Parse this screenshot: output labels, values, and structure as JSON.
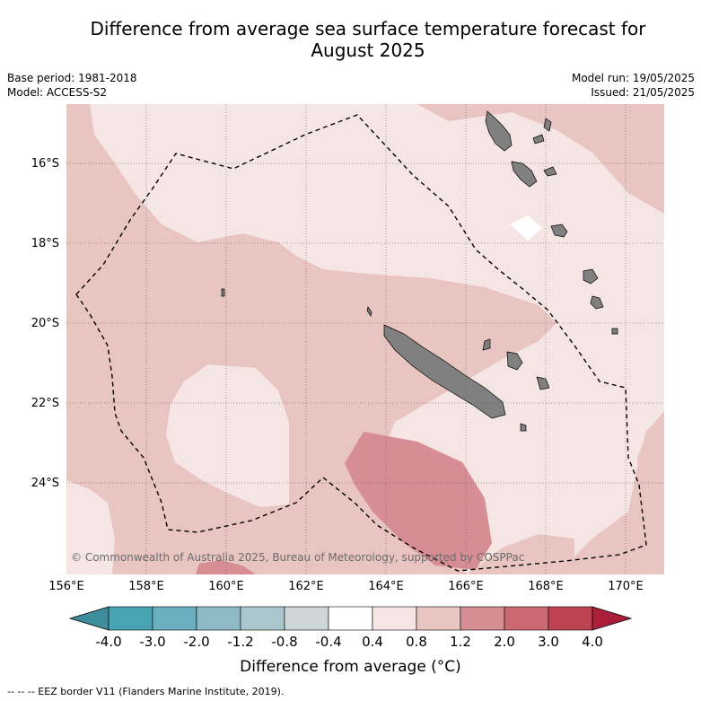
{
  "header": {
    "title_line1": "Difference from average sea surface temperature forecast for",
    "title_line2": "August 2025",
    "base_period": "Base period: 1981-2018",
    "model": "Model: ACCESS-S2",
    "model_run": "Model run: 19/05/2025",
    "issued": "Issued: 21/05/2025"
  },
  "map": {
    "lat_labels": [
      "16°S",
      "18°S",
      "20°S",
      "22°S",
      "24°S"
    ],
    "lon_labels": [
      "156°E",
      "158°E",
      "160°E",
      "162°E",
      "164°E",
      "166°E",
      "168°E",
      "170°E"
    ],
    "copyright": "© Commonwealth of Australia 2025, Bureau of Meteorology, supported by COSPPac"
  },
  "colorbar": {
    "ticks": [
      "-4.0",
      "-3.0",
      "-2.0",
      "-1.2",
      "-0.8",
      "-0.4",
      "0.4",
      "0.8",
      "1.2",
      "2.0",
      "3.0",
      "4.0"
    ],
    "colors": [
      "#3d8d9c",
      "#48a3b3",
      "#6aafbf",
      "#8fb9c5",
      "#a9c7cc",
      "#ced6d8",
      "#ffffff",
      "#f5e6e5",
      "#e8c5c1",
      "#d68d94",
      "#cc6872",
      "#be4453",
      "#ac1d3a"
    ],
    "label": "Difference from average (°C)"
  },
  "legend": {
    "eez_label": "-- -- -- EEZ border V11 (Flanders Marine Institute, 2019)."
  }
}
